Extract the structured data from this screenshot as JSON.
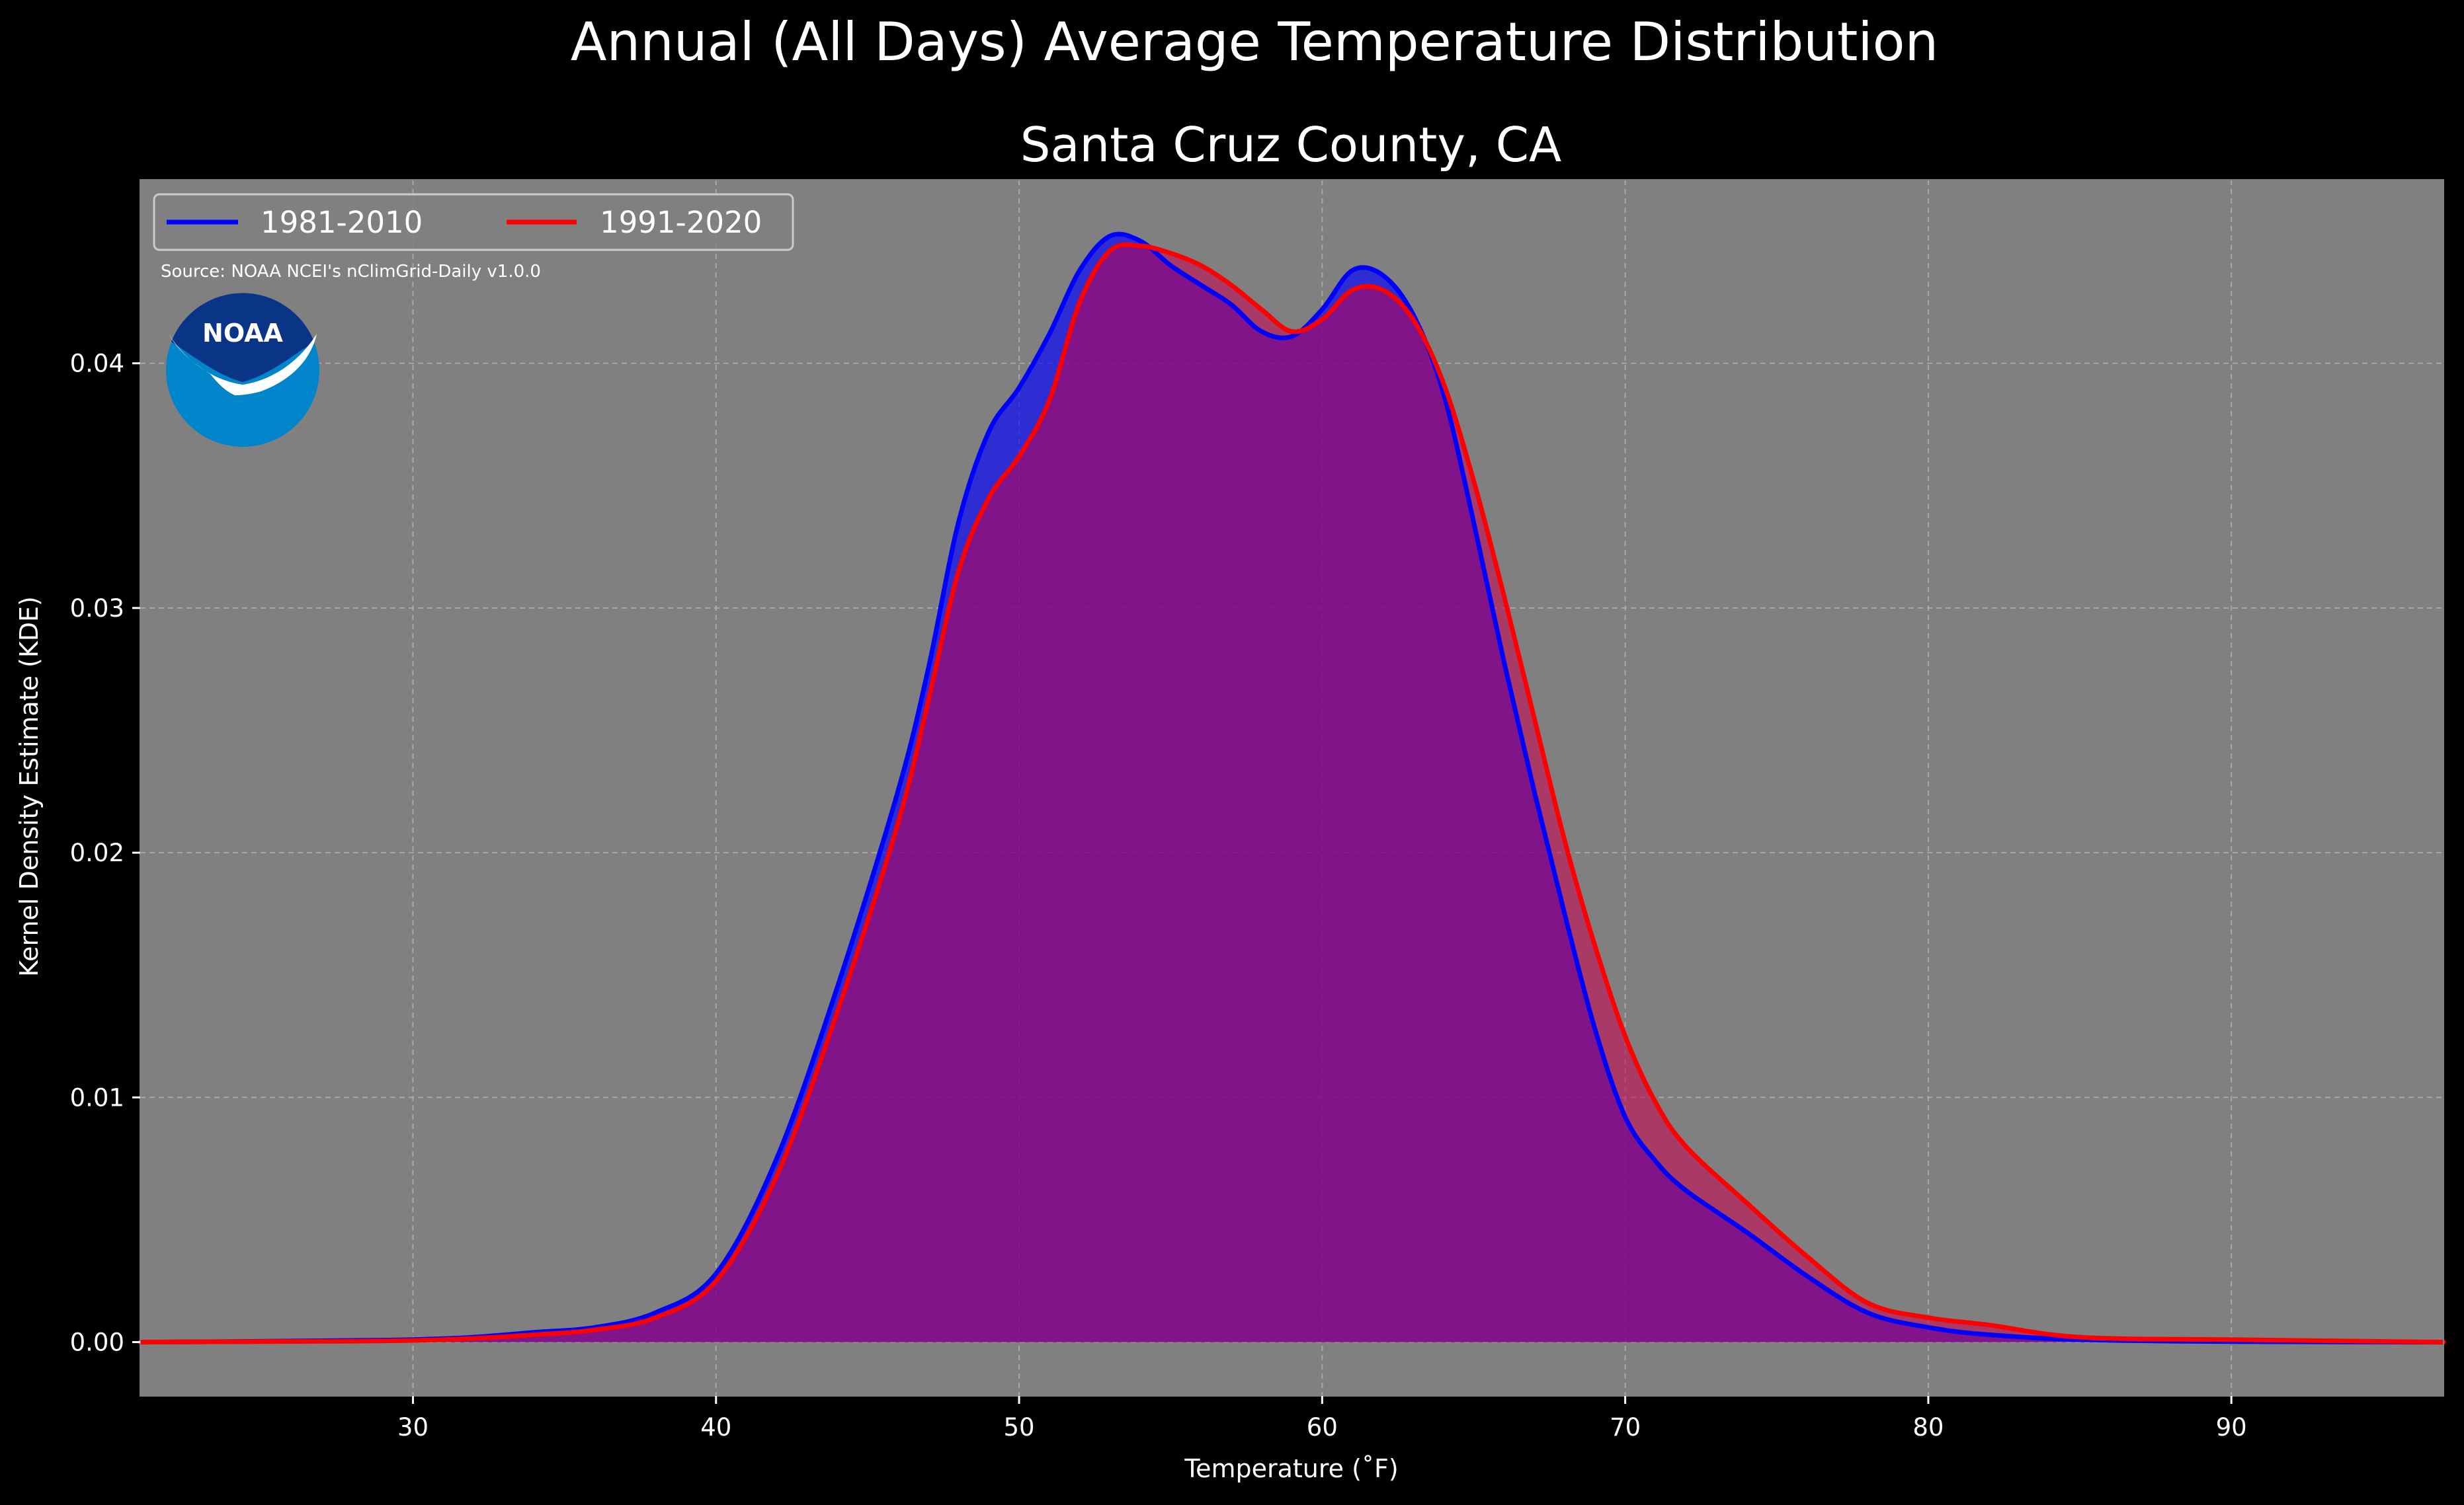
{
  "chart_data": {
    "type": "area",
    "title": "Annual (All Days) Average Temperature Distribution",
    "subtitle": "Santa Cruz County, CA",
    "xlabel": "Temperature ($^\\circ$F)",
    "xlabel_display": "Temperature (˚F)",
    "ylabel": "Kernel Density Estimate (KDE)",
    "xlim": [
      21,
      97
    ],
    "ylim": [
      -0.0022,
      0.0475
    ],
    "x_ticks": [
      30,
      40,
      50,
      60,
      70,
      80,
      90
    ],
    "y_ticks": [
      0.0,
      0.01,
      0.02,
      0.03,
      0.04
    ],
    "y_tick_labels": [
      "0.00",
      "0.01",
      "0.02",
      "0.03",
      "0.04"
    ],
    "grid": true,
    "legend_placement": "top-left",
    "source": "Source: NOAA NCEI's nClimGrid-Daily v1.0.0",
    "logo_text": "NOAA",
    "colors": {
      "figure_background": "#000000",
      "plot_background": "#808080",
      "series_1981_2010": "#0000ff",
      "series_1991_2020": "#ff0000",
      "fill_1981_2010": "#0000ff",
      "fill_1991_2020": "#c8004e",
      "logo_dark": "#0a3587",
      "logo_light": "#0085ca"
    },
    "series": [
      {
        "name": "1981-2010",
        "color": "#0000ff",
        "x": [
          21,
          25,
          28,
          30,
          32,
          34,
          36,
          38,
          40,
          42,
          44,
          46,
          47,
          48,
          49,
          50,
          51,
          52,
          53,
          54,
          55,
          56,
          57,
          58,
          59,
          60,
          61,
          62,
          63,
          64,
          65,
          66,
          67,
          68,
          69,
          70,
          71,
          72,
          74,
          76,
          78,
          80,
          82,
          85,
          90,
          97
        ],
        "y": [
          0.0,
          3e-05,
          7e-05,
          0.0001,
          0.0002,
          0.0004,
          0.0006,
          0.0012,
          0.0028,
          0.0075,
          0.0145,
          0.0225,
          0.0275,
          0.0335,
          0.0372,
          0.039,
          0.0412,
          0.0438,
          0.0452,
          0.045,
          0.044,
          0.0432,
          0.0424,
          0.0413,
          0.0411,
          0.0422,
          0.0438,
          0.0436,
          0.042,
          0.0388,
          0.0335,
          0.0278,
          0.0225,
          0.0175,
          0.0128,
          0.0092,
          0.0074,
          0.0062,
          0.0045,
          0.0027,
          0.0012,
          0.0006,
          0.0003,
          0.0001,
          2e-05,
          0.0
        ]
      },
      {
        "name": "1991-2020",
        "color": "#ff0000",
        "x": [
          21,
          25,
          28,
          30,
          32,
          34,
          36,
          38,
          40,
          42,
          44,
          46,
          47,
          48,
          49,
          50,
          51,
          52,
          53,
          54,
          55,
          56,
          57,
          58,
          59,
          60,
          61,
          62,
          63,
          64,
          65,
          66,
          67,
          68,
          69,
          70,
          71,
          72,
          74,
          76,
          78,
          80,
          82,
          85,
          90,
          97
        ],
        "y": [
          0.0,
          2e-05,
          4e-05,
          7e-05,
          0.00015,
          0.0003,
          0.0005,
          0.001,
          0.0025,
          0.0068,
          0.0135,
          0.0212,
          0.0262,
          0.0315,
          0.0345,
          0.0362,
          0.0385,
          0.0425,
          0.0446,
          0.0448,
          0.0445,
          0.044,
          0.0432,
          0.0422,
          0.0413,
          0.0418,
          0.043,
          0.043,
          0.0418,
          0.0392,
          0.0352,
          0.0305,
          0.0255,
          0.0205,
          0.0162,
          0.0125,
          0.0098,
          0.008,
          0.0057,
          0.0035,
          0.0016,
          0.001,
          0.0007,
          0.0002,
          0.0001,
          0.0
        ]
      }
    ]
  }
}
